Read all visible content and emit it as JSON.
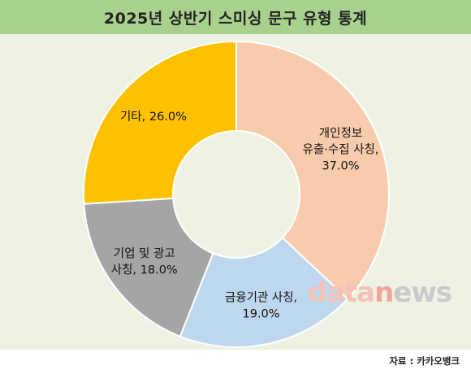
{
  "title": "2025년 상반기 스미싱 문구 유형 통계",
  "source": "자료 : 카카오뱅크",
  "watermark": {
    "part1": "data",
    "part2": "n",
    "part3": "ews"
  },
  "chart_data": {
    "type": "pie",
    "style": "donut",
    "title": "2025년 상반기 스미싱 문구 유형 통계",
    "start_angle_deg": 0,
    "direction": "clockwise",
    "slices": [
      {
        "name": "개인정보 유출·수집 사칭",
        "value": 37.0,
        "label_lines": [
          "개인정보",
          "유출·수집 사칭,",
          "37.0%"
        ],
        "color": "#f8cbad"
      },
      {
        "name": "금융기관 사칭",
        "value": 19.0,
        "label_lines": [
          "금융기관 사칭,",
          "19.0%"
        ],
        "color": "#bdd7ee"
      },
      {
        "name": "기업 및 광고 사칭",
        "value": 18.0,
        "label_lines": [
          "기업 및 광고",
          "사칭, 18.0%"
        ],
        "color": "#a5a5a5"
      },
      {
        "name": "기타",
        "value": 26.0,
        "label_lines": [
          "기타, 26.0%"
        ],
        "color": "#ffc000"
      }
    ]
  }
}
